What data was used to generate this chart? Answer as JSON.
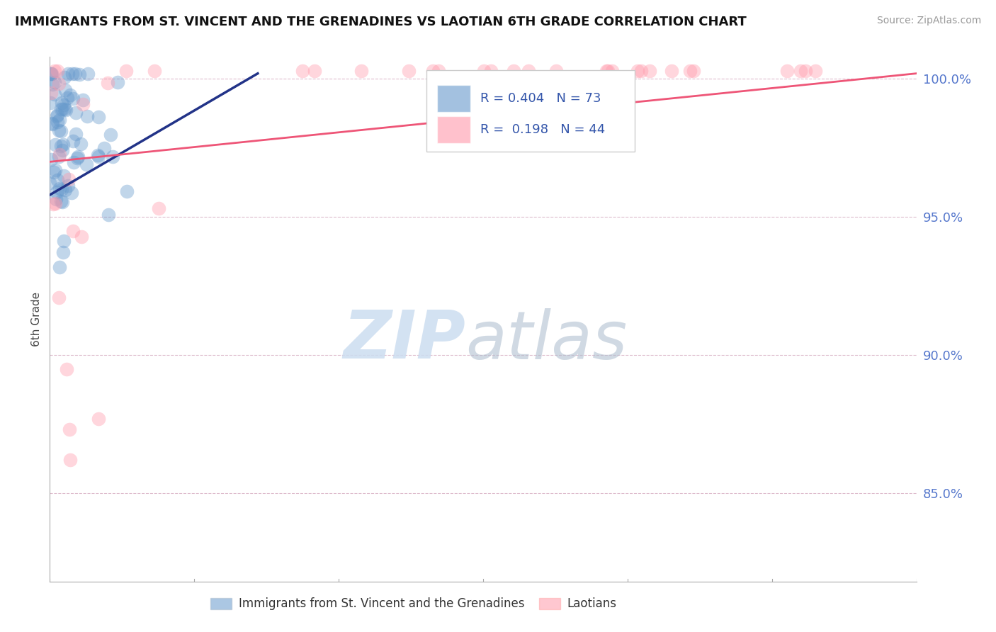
{
  "title": "IMMIGRANTS FROM ST. VINCENT AND THE GRENADINES VS LAOTIAN 6TH GRADE CORRELATION CHART",
  "source": "Source: ZipAtlas.com",
  "ylabel": "6th Grade",
  "yticks": [
    0.85,
    0.9,
    0.95,
    1.0
  ],
  "ytick_labels": [
    "85.0%",
    "90.0%",
    "95.0%",
    "100.0%"
  ],
  "ylim": [
    0.818,
    1.008
  ],
  "xlim": [
    0.0,
    0.3
  ],
  "blue_R": 0.404,
  "blue_N": 73,
  "pink_R": 0.198,
  "pink_N": 44,
  "blue_color": "#6699CC",
  "pink_color": "#FF99AA",
  "blue_line_color": "#223388",
  "pink_line_color": "#EE5577",
  "watermark_zip": "ZIP",
  "watermark_atlas": "atlas",
  "legend_label_blue": "Immigrants from St. Vincent and the Grenadines",
  "legend_label_pink": "Laotians",
  "blue_line_x0": 0.0,
  "blue_line_y0": 0.958,
  "blue_line_x1": 0.072,
  "blue_line_y1": 1.002,
  "pink_line_x0": 0.0,
  "pink_line_y0": 0.97,
  "pink_line_x1": 0.3,
  "pink_line_y1": 1.002
}
